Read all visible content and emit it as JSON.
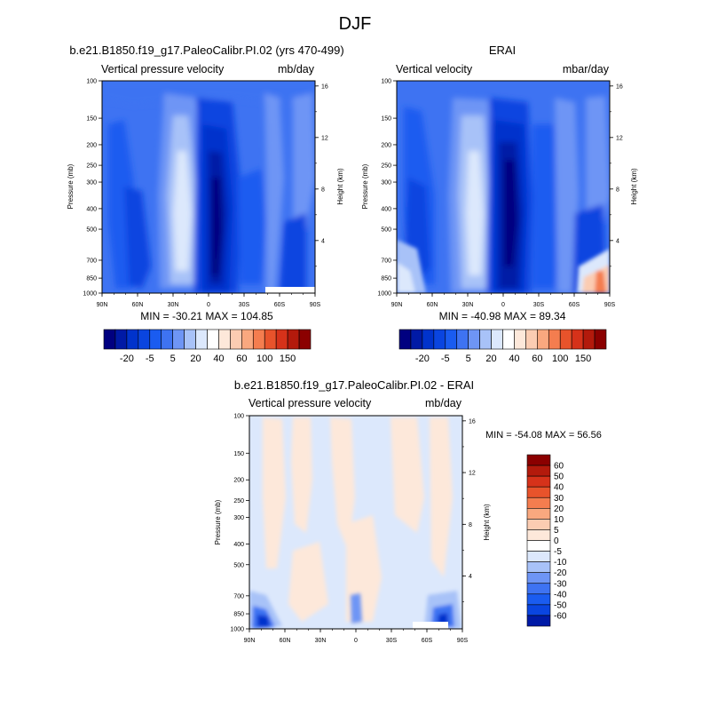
{
  "page_title": "DJF",
  "colors": {
    "blue_scale": [
      "#000080",
      "#001aa6",
      "#0033cc",
      "#0a45e0",
      "#1a5cf0",
      "#3e73f2",
      "#6e95f5",
      "#a8c2f8",
      "#dce8fc"
    ],
    "warm_scale": [
      "#fde8da",
      "#fbccb2",
      "#f9a87f",
      "#f47d4f",
      "#e8532b",
      "#d6321a",
      "#b31a0c",
      "#8b0000"
    ],
    "neutral": "#ffffff"
  },
  "chart_data": [
    {
      "id": "model",
      "type": "heatmap",
      "title": "b.e21.B1850.f19_g17.PaleoCalibr.PI.02 (yrs 470-499)",
      "left_label": "Vertical pressure velocity",
      "right_label": "mb/day",
      "ylabel": "Pressure (mb)",
      "ylabel_right": "Height (km)",
      "xticks": [
        "90N",
        "60N",
        "30N",
        "0",
        "30S",
        "60S",
        "90S"
      ],
      "yticks": [
        "100",
        "150",
        "200",
        "250",
        "300",
        "400",
        "500",
        "700",
        "850",
        "1000"
      ],
      "yticks_right": [
        "16",
        "12",
        "8",
        "4"
      ],
      "min_max": "MIN = -30.21  MAX = 104.85",
      "levels": [
        -30,
        -25,
        -20,
        -15,
        -10,
        -5,
        0,
        5,
        10,
        20,
        30,
        40,
        50,
        60,
        80,
        100,
        120,
        150
      ],
      "colorbar_labels": [
        "-20",
        "-5",
        "5",
        "20",
        "40",
        "60",
        "100",
        "150"
      ],
      "field": "model"
    },
    {
      "id": "erai",
      "type": "heatmap",
      "title": "ERAI",
      "left_label": "Vertical velocity",
      "right_label": "mbar/day",
      "ylabel": "Pressure (mb)",
      "ylabel_right": "Height (km)",
      "xticks": [
        "90N",
        "60N",
        "30N",
        "0",
        "30S",
        "60S",
        "90S"
      ],
      "yticks": [
        "100",
        "150",
        "200",
        "250",
        "300",
        "400",
        "500",
        "700",
        "850",
        "1000"
      ],
      "yticks_right": [
        "16",
        "12",
        "8",
        "4"
      ],
      "min_max": "MIN = -40.98  MAX =  89.34",
      "levels": [
        -30,
        -25,
        -20,
        -15,
        -10,
        -5,
        0,
        5,
        10,
        20,
        30,
        40,
        50,
        60,
        80,
        100,
        120,
        150
      ],
      "colorbar_labels": [
        "-20",
        "-5",
        "5",
        "20",
        "40",
        "60",
        "100",
        "150"
      ],
      "field": "erai"
    },
    {
      "id": "diff",
      "type": "heatmap",
      "title": "b.e21.B1850.f19_g17.PaleoCalibr.PI.02 - ERAI",
      "left_label": "Vertical pressure velocity",
      "right_label": "mb/day",
      "ylabel": "Pressure (mb)",
      "ylabel_right": "Height (km)",
      "xticks": [
        "90N",
        "60N",
        "30N",
        "0",
        "30S",
        "60S",
        "90S"
      ],
      "yticks": [
        "100",
        "150",
        "200",
        "250",
        "300",
        "400",
        "500",
        "700",
        "850",
        "1000"
      ],
      "yticks_right": [
        "16",
        "12",
        "8",
        "4"
      ],
      "min_max": "MIN = -54.08  MAX =  56.56",
      "levels": [
        -60,
        -50,
        -40,
        -30,
        -20,
        -10,
        -5,
        0,
        5,
        10,
        20,
        30,
        40,
        50,
        60
      ],
      "colorbar_labels": [
        "60",
        "50",
        "40",
        "30",
        "20",
        "10",
        "5",
        "0",
        "-5",
        "-10",
        "-20",
        "-30",
        "-40",
        "-50",
        "-60"
      ],
      "field": "diff"
    }
  ]
}
